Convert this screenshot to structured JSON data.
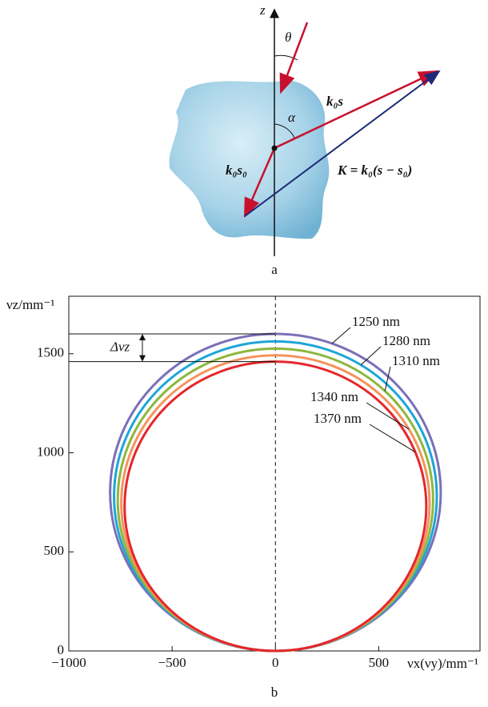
{
  "diagram": {
    "axis_label": "z",
    "theta": "θ",
    "alpha": "α",
    "k0s": "k₀s",
    "k0s0": "k₀s₀",
    "K": "K = k₀(s − s₀)",
    "panel_label": "a"
  },
  "chart_data": {
    "type": "circle",
    "y_label": "νz/mm⁻¹",
    "x_label": "νx(νy)/mm⁻¹",
    "panel_label": "b",
    "delta_label": "Δνz",
    "xlim": [
      -1000,
      990
    ],
    "ylim": [
      0,
      1790
    ],
    "xticks": [
      {
        "value": -1000,
        "label": "−1000"
      },
      {
        "value": -500,
        "label": "−500"
      },
      0,
      500
    ],
    "yticks": [
      0,
      500,
      1000,
      1500
    ],
    "series": [
      {
        "name": "1250 nm",
        "color": "#7b70b8",
        "radius": 800
      },
      {
        "name": "1280 nm",
        "color": "#1ea5d6",
        "radius": 781
      },
      {
        "name": "1310 nm",
        "color": "#8db73e",
        "radius": 763
      },
      {
        "name": "1340 nm",
        "color": "#f4935c",
        "radius": 746
      },
      {
        "name": "1370 nm",
        "color": "#e3272c",
        "radius": 730
      }
    ]
  }
}
